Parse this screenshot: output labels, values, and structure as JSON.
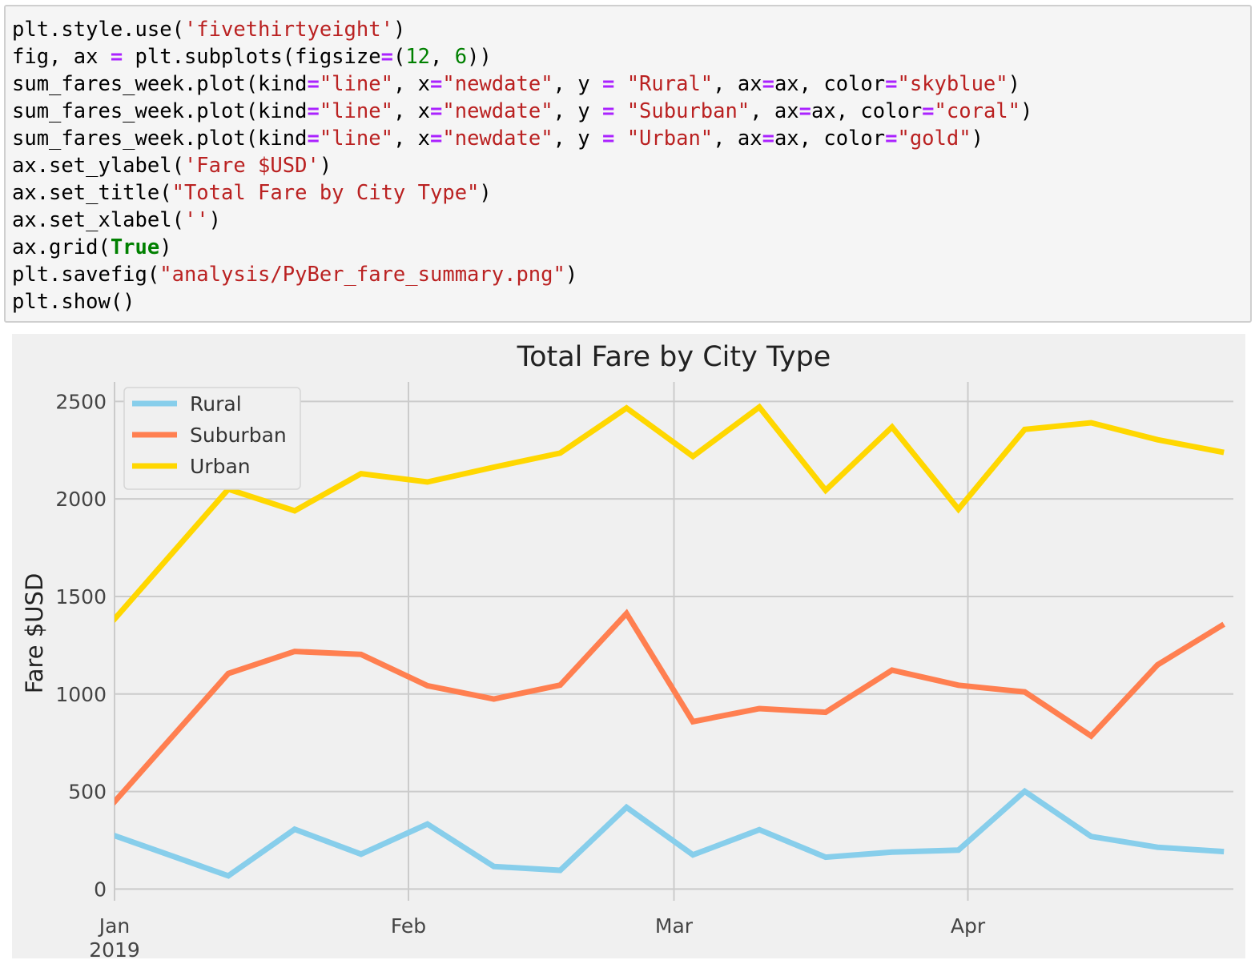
{
  "code_cell": {
    "lines": [
      [
        {
          "t": "plt.style.use(",
          "c": "plain"
        },
        {
          "t": "'fivethirtyeight'",
          "c": "str"
        },
        {
          "t": ")",
          "c": "plain"
        }
      ],
      [
        {
          "t": "fig, ax ",
          "c": "plain"
        },
        {
          "t": "=",
          "c": "op"
        },
        {
          "t": " plt.subplots(figsize",
          "c": "plain"
        },
        {
          "t": "=",
          "c": "op"
        },
        {
          "t": "(",
          "c": "plain"
        },
        {
          "t": "12",
          "c": "num"
        },
        {
          "t": ", ",
          "c": "plain"
        },
        {
          "t": "6",
          "c": "num"
        },
        {
          "t": "))",
          "c": "plain"
        }
      ],
      [
        {
          "t": "sum_fares_week.plot(kind",
          "c": "plain"
        },
        {
          "t": "=",
          "c": "op"
        },
        {
          "t": "\"line\"",
          "c": "str"
        },
        {
          "t": ", x",
          "c": "plain"
        },
        {
          "t": "=",
          "c": "op"
        },
        {
          "t": "\"newdate\"",
          "c": "str"
        },
        {
          "t": ", y ",
          "c": "plain"
        },
        {
          "t": "=",
          "c": "op"
        },
        {
          "t": " ",
          "c": "plain"
        },
        {
          "t": "\"Rural\"",
          "c": "str"
        },
        {
          "t": ", ax",
          "c": "plain"
        },
        {
          "t": "=",
          "c": "op"
        },
        {
          "t": "ax, color",
          "c": "plain"
        },
        {
          "t": "=",
          "c": "op"
        },
        {
          "t": "\"skyblue\"",
          "c": "str"
        },
        {
          "t": ")",
          "c": "plain"
        }
      ],
      [
        {
          "t": "sum_fares_week.plot(kind",
          "c": "plain"
        },
        {
          "t": "=",
          "c": "op"
        },
        {
          "t": "\"line\"",
          "c": "str"
        },
        {
          "t": ", x",
          "c": "plain"
        },
        {
          "t": "=",
          "c": "op"
        },
        {
          "t": "\"newdate\"",
          "c": "str"
        },
        {
          "t": ", y ",
          "c": "plain"
        },
        {
          "t": "=",
          "c": "op"
        },
        {
          "t": " ",
          "c": "plain"
        },
        {
          "t": "\"Suburban\"",
          "c": "str"
        },
        {
          "t": ", ax",
          "c": "plain"
        },
        {
          "t": "=",
          "c": "op"
        },
        {
          "t": "ax, color",
          "c": "plain"
        },
        {
          "t": "=",
          "c": "op"
        },
        {
          "t": "\"coral\"",
          "c": "str"
        },
        {
          "t": ")",
          "c": "plain"
        }
      ],
      [
        {
          "t": "sum_fares_week.plot(kind",
          "c": "plain"
        },
        {
          "t": "=",
          "c": "op"
        },
        {
          "t": "\"line\"",
          "c": "str"
        },
        {
          "t": ", x",
          "c": "plain"
        },
        {
          "t": "=",
          "c": "op"
        },
        {
          "t": "\"newdate\"",
          "c": "str"
        },
        {
          "t": ", y ",
          "c": "plain"
        },
        {
          "t": "=",
          "c": "op"
        },
        {
          "t": " ",
          "c": "plain"
        },
        {
          "t": "\"Urban\"",
          "c": "str"
        },
        {
          "t": ", ax",
          "c": "plain"
        },
        {
          "t": "=",
          "c": "op"
        },
        {
          "t": "ax, color",
          "c": "plain"
        },
        {
          "t": "=",
          "c": "op"
        },
        {
          "t": "\"gold\"",
          "c": "str"
        },
        {
          "t": ")",
          "c": "plain"
        }
      ],
      [
        {
          "t": "ax.set_ylabel(",
          "c": "plain"
        },
        {
          "t": "'Fare $USD'",
          "c": "str"
        },
        {
          "t": ")",
          "c": "plain"
        }
      ],
      [
        {
          "t": "ax.set_title(",
          "c": "plain"
        },
        {
          "t": "\"Total Fare by City Type\"",
          "c": "str"
        },
        {
          "t": ")",
          "c": "plain"
        }
      ],
      [
        {
          "t": "ax.set_xlabel(",
          "c": "plain"
        },
        {
          "t": "''",
          "c": "str"
        },
        {
          "t": ")",
          "c": "plain"
        }
      ],
      [
        {
          "t": "ax.grid(",
          "c": "plain"
        },
        {
          "t": "True",
          "c": "kw"
        },
        {
          "t": ")",
          "c": "plain"
        }
      ],
      [
        {
          "t": "plt.savefig(",
          "c": "plain"
        },
        {
          "t": "\"analysis/PyBer_fare_summary.png\"",
          "c": "str"
        },
        {
          "t": ")",
          "c": "plain"
        }
      ],
      [
        {
          "t": "plt.show()",
          "c": "plain"
        }
      ]
    ]
  },
  "colors": {
    "code_bg": "#f5f5f5",
    "code_border": "#cfcfcf",
    "string": "#ba2121",
    "operator": "#aa22ff",
    "number": "#008000",
    "keyword": "#008000",
    "plot_bg": "#f0f0f0",
    "grid": "#cbcbcb"
  },
  "chart_data": {
    "type": "line",
    "title": "Total Fare by City Type",
    "xlabel": "",
    "ylabel": "Fare $USD",
    "x": [
      "2019-01-06",
      "2019-01-13",
      "2019-01-20",
      "2019-01-27",
      "2019-02-03",
      "2019-02-10",
      "2019-02-17",
      "2019-02-24",
      "2019-03-03",
      "2019-03-10",
      "2019-03-17",
      "2019-03-24",
      "2019-03-31",
      "2019-04-07",
      "2019-04-14",
      "2019-04-21",
      "2019-04-28"
    ],
    "xlim": [
      "2019-01-01",
      "2019-04-29"
    ],
    "ylim": [
      -60,
      2600
    ],
    "yticks": [
      0,
      500,
      1000,
      1500,
      2000,
      2500
    ],
    "xticks": [
      {
        "date": "2019-01-01",
        "label": "Jan",
        "sublabel": "2019"
      },
      {
        "date": "2019-02-01",
        "label": "Feb",
        "sublabel": ""
      },
      {
        "date": "2019-03-01",
        "label": "Mar",
        "sublabel": ""
      },
      {
        "date": "2019-04-01",
        "label": "Apr",
        "sublabel": ""
      }
    ],
    "grid": true,
    "legend_position": "top-left",
    "series": [
      {
        "name": "Rural",
        "color": "#87ceeb",
        "values": [
          187.92,
          67.65,
          306.54,
          179.03,
          333.08,
          115.8,
          95.82,
          419.06,
          175.14,
          303.94,
          163.39,
          189.76,
          199.42,
          501.24,
          269.79,
          214.14,
          191.85
        ]
      },
      {
        "name": "Suburban",
        "color": "#ff7f50",
        "values": [
          721.6,
          1105.13,
          1218.2,
          1203.28,
          1042.79,
          974.34,
          1045.5,
          1412.74,
          858.46,
          925.27,
          906.2,
          1122.2,
          1045.06,
          1010.73,
          784.82,
          1149.27,
          1357.75
        ]
      },
      {
        "name": "Urban",
        "color": "#ffd700",
        "values": [
          1661.68,
          2050.43,
          1939.02,
          2129.51,
          2086.94,
          2162.64,
          2235.07,
          2466.29,
          2218.2,
          2470.93,
          2044.42,
          2368.37,
          1947.5,
          2356.7,
          2390.72,
          2303.8,
          2238.29
        ]
      }
    ]
  }
}
